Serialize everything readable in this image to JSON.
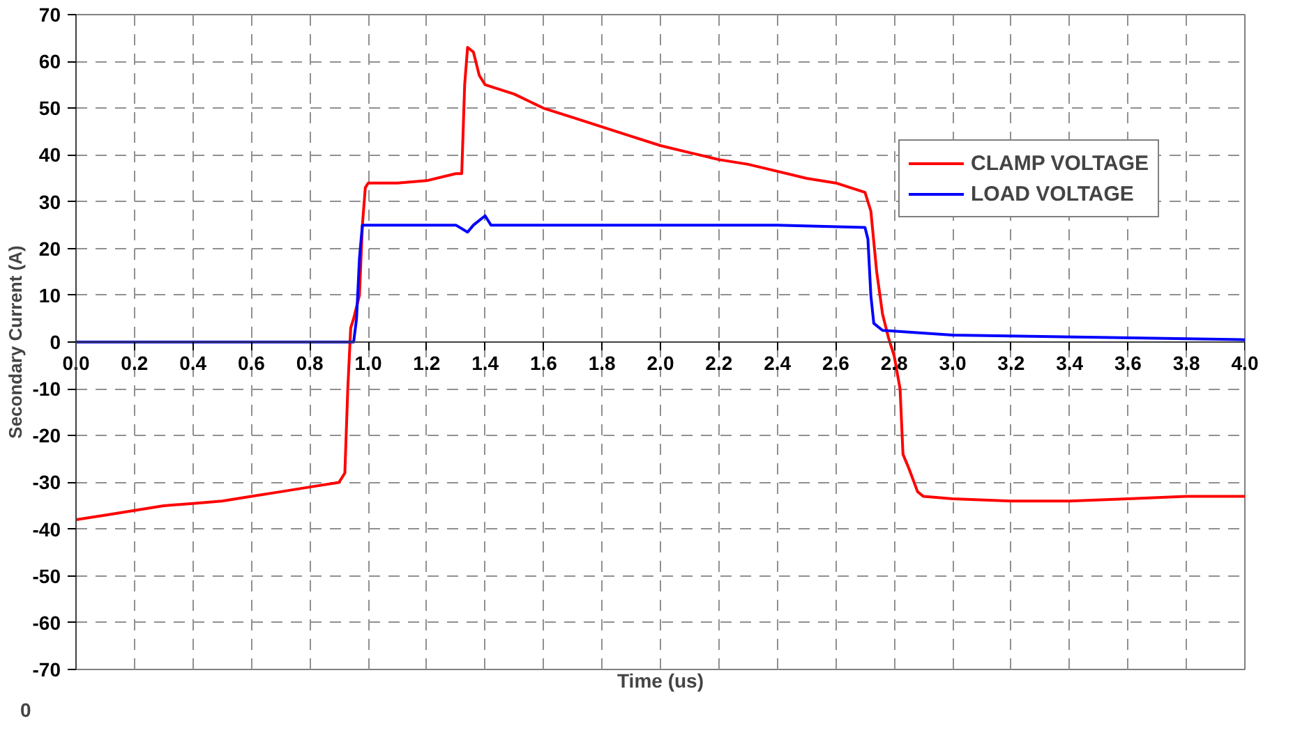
{
  "chart_data": {
    "type": "line",
    "xlabel": "Time (us)",
    "ylabel": "Secondary Current (A)",
    "xlim": [
      0.0,
      4.0
    ],
    "xticks": [
      {
        "value": 0,
        "label": "0.0"
      },
      {
        "value": 0.2,
        "label": "0.2"
      },
      {
        "value": 0.4,
        "label": "0.4"
      },
      {
        "value": 0.6,
        "label": "0.6"
      },
      {
        "value": 0.8,
        "label": "0.8"
      },
      {
        "value": 1,
        "label": "1.0"
      },
      {
        "value": 1.2,
        "label": "1.2"
      },
      {
        "value": 1.4,
        "label": "1.4"
      },
      {
        "value": 1.6,
        "label": "1.6"
      },
      {
        "value": 1.8,
        "label": "1.8"
      },
      {
        "value": 2,
        "label": "2.0"
      },
      {
        "value": 2.2,
        "label": "2.2"
      },
      {
        "value": 2.4,
        "label": "2.4"
      },
      {
        "value": 2.6,
        "label": "2.6"
      },
      {
        "value": 2.8,
        "label": "2.8"
      },
      {
        "value": 3,
        "label": "3.0"
      },
      {
        "value": 3.2,
        "label": "3.2"
      },
      {
        "value": 3.4,
        "label": "3.4"
      },
      {
        "value": 3.6,
        "label": "3.6"
      },
      {
        "value": 3.8,
        "label": "3.8"
      },
      {
        "value": 4,
        "label": "4.0"
      }
    ],
    "ylim": [
      -70,
      70
    ],
    "yticks": [
      -70,
      -60,
      -50,
      -40,
      -30,
      -20,
      -10,
      0,
      10,
      20,
      30,
      40,
      50,
      60,
      70
    ],
    "grid": true,
    "legend": "right",
    "marker": "none",
    "line_style": "solid",
    "annotations": [
      "0"
    ],
    "series": [
      {
        "name": "CLAMP VOLTAGE",
        "color": "#ff0000",
        "x": [
          0,
          0.1,
          0.2,
          0.3,
          0.4,
          0.5,
          0.6,
          0.7,
          0.8,
          0.9,
          0.92,
          0.93,
          0.94,
          0.95,
          0.97,
          0.98,
          0.99,
          1.0,
          1.1,
          1.2,
          1.3,
          1.32,
          1.33,
          1.34,
          1.36,
          1.38,
          1.4,
          1.5,
          1.6,
          1.7,
          1.8,
          1.9,
          2.0,
          2.1,
          2.2,
          2.3,
          2.4,
          2.5,
          2.6,
          2.7,
          2.72,
          2.74,
          2.76,
          2.78,
          2.8,
          2.82,
          2.83,
          2.85,
          2.88,
          2.9,
          3.0,
          3.2,
          3.4,
          3.6,
          3.8,
          4.0
        ],
        "values": [
          -38,
          -37,
          -36,
          -35,
          -34.5,
          -34,
          -33,
          -32,
          -31,
          -30,
          -28,
          -10,
          3,
          5,
          10,
          25,
          33,
          34,
          34,
          34.5,
          36,
          36,
          55,
          63,
          62,
          57,
          55,
          53,
          50,
          48,
          46,
          44,
          42,
          40.5,
          39,
          38,
          36.5,
          35,
          34,
          32,
          28,
          15,
          6,
          1,
          -3,
          -10,
          -24,
          -27,
          -32,
          -33,
          -33.5,
          -34,
          -34,
          -33.5,
          -33,
          -33
        ]
      },
      {
        "name": "LOAD VOLTAGE",
        "color": "#0000ff",
        "x": [
          0,
          0.5,
          0.95,
          0.96,
          0.97,
          0.98,
          1.0,
          1.3,
          1.34,
          1.36,
          1.4,
          1.42,
          1.6,
          2.0,
          2.4,
          2.7,
          2.71,
          2.72,
          2.73,
          2.76,
          3.0,
          3.5,
          4.0
        ],
        "values": [
          0,
          0,
          0,
          5,
          18,
          25,
          25,
          25,
          23.5,
          25,
          27,
          25,
          25,
          25,
          25,
          24.5,
          22,
          10,
          4,
          2.5,
          1.5,
          1,
          0.5
        ]
      }
    ]
  }
}
